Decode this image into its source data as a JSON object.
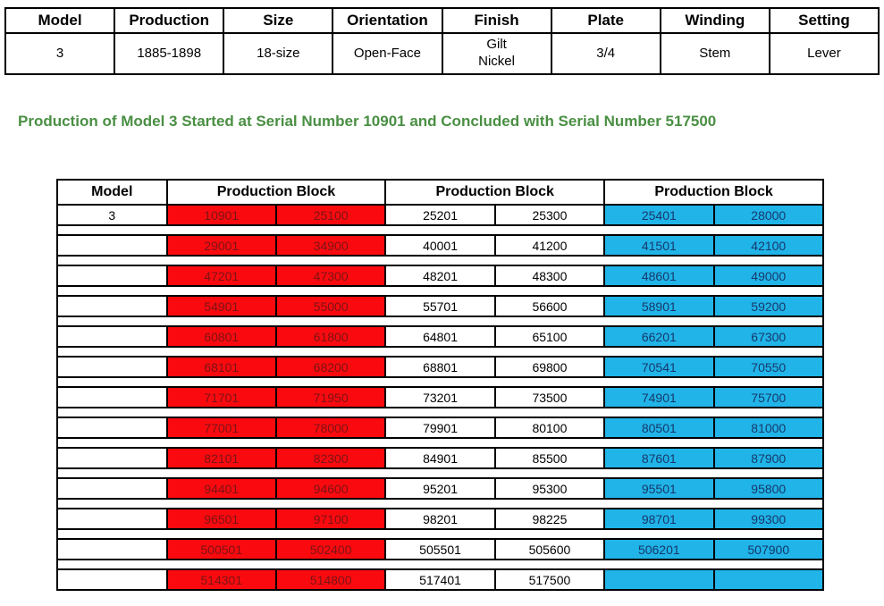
{
  "colors": {
    "red_bg": "#FA0A0F",
    "red_text": "#7C1315",
    "blue_bg": "#20B4E8",
    "blue_text": "#17386B",
    "heading_green": "#4A8F43",
    "border_black": "#000000"
  },
  "spec_table": {
    "headers": [
      "Model",
      "Production",
      "Size",
      "Orientation",
      "Finish",
      "Plate",
      "Winding",
      "Setting"
    ],
    "values": [
      "3",
      "1885-1898",
      "18-size",
      "Open-Face",
      "Gilt\nNickel",
      "3/4",
      "Stem",
      "Lever"
    ]
  },
  "heading": "Production of Model 3 Started at Serial Number 10901 and Concluded with Serial Number 517500",
  "block_table": {
    "headers": [
      "Model",
      "Production Block",
      "Production Block",
      "Production Block"
    ],
    "rows": [
      {
        "model": "3",
        "red": [
          "10901",
          "25100"
        ],
        "white": [
          "25201",
          "25300"
        ],
        "blue": [
          "25401",
          "28000"
        ]
      },
      {
        "model": "",
        "red": [
          "29001",
          "34900"
        ],
        "white": [
          "40001",
          "41200"
        ],
        "blue": [
          "41501",
          "42100"
        ]
      },
      {
        "model": "",
        "red": [
          "47201",
          "47300"
        ],
        "white": [
          "48201",
          "48300"
        ],
        "blue": [
          "48601",
          "49000"
        ]
      },
      {
        "model": "",
        "red": [
          "54901",
          "55000"
        ],
        "white": [
          "55701",
          "56600"
        ],
        "blue": [
          "58901",
          "59200"
        ]
      },
      {
        "model": "",
        "red": [
          "60801",
          "61800"
        ],
        "white": [
          "64801",
          "65100"
        ],
        "blue": [
          "66201",
          "67300"
        ]
      },
      {
        "model": "",
        "red": [
          "68101",
          "68200"
        ],
        "white": [
          "68801",
          "69800"
        ],
        "blue": [
          "70541",
          "70550"
        ]
      },
      {
        "model": "",
        "red": [
          "71701",
          "71950"
        ],
        "white": [
          "73201",
          "73500"
        ],
        "blue": [
          "74901",
          "75700"
        ]
      },
      {
        "model": "",
        "red": [
          "77001",
          "78000"
        ],
        "white": [
          "79901",
          "80100"
        ],
        "blue": [
          "80501",
          "81000"
        ]
      },
      {
        "model": "",
        "red": [
          "82101",
          "82300"
        ],
        "white": [
          "84901",
          "85500"
        ],
        "blue": [
          "87601",
          "87900"
        ]
      },
      {
        "model": "",
        "red": [
          "94401",
          "94600"
        ],
        "white": [
          "95201",
          "95300"
        ],
        "blue": [
          "95501",
          "95800"
        ]
      },
      {
        "model": "",
        "red": [
          "96501",
          "97100"
        ],
        "white": [
          "98201",
          "98225"
        ],
        "blue": [
          "98701",
          "99300"
        ]
      },
      {
        "model": "",
        "red": [
          "500501",
          "502400"
        ],
        "white": [
          "505501",
          "505600"
        ],
        "blue": [
          "506201",
          "507900"
        ]
      },
      {
        "model": "",
        "red": [
          "514301",
          "514800"
        ],
        "white": [
          "517401",
          "517500"
        ],
        "blue": [
          "",
          ""
        ]
      }
    ]
  }
}
